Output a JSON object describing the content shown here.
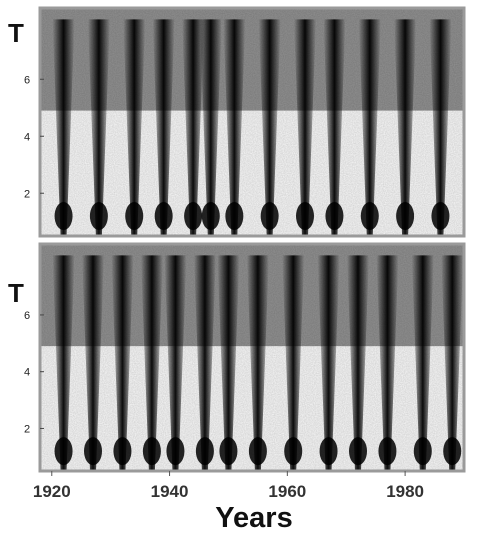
{
  "chart_data": [
    {
      "type": "heatmap",
      "panel": "top",
      "ylabel": "T",
      "yticks": [
        "2",
        "4",
        "6"
      ],
      "ylim": [
        0.5,
        8.5
      ],
      "xlim": [
        1918,
        1990
      ],
      "dark_trough_years": [
        1922,
        1928,
        1934,
        1939,
        1944,
        1947,
        1951,
        1957,
        1963,
        1968,
        1974,
        1980,
        1986
      ],
      "colormap": [
        "#000000",
        "#ffffff"
      ]
    },
    {
      "type": "heatmap",
      "panel": "bottom",
      "ylabel": "T",
      "yticks": [
        "2",
        "4",
        "6"
      ],
      "ylim": [
        0.5,
        8.5
      ],
      "xlim": [
        1918,
        1990
      ],
      "dark_trough_years": [
        1922,
        1927,
        1932,
        1937,
        1941,
        1946,
        1950,
        1955,
        1961,
        1967,
        1972,
        1977,
        1983,
        1988
      ],
      "colormap": [
        "#000000",
        "#ffffff"
      ]
    }
  ],
  "x_axis": {
    "tick_labels": [
      "1920",
      "1940",
      "1960",
      "1980"
    ],
    "tick_values": [
      1920,
      1940,
      1960,
      1980
    ],
    "title": "Years"
  }
}
